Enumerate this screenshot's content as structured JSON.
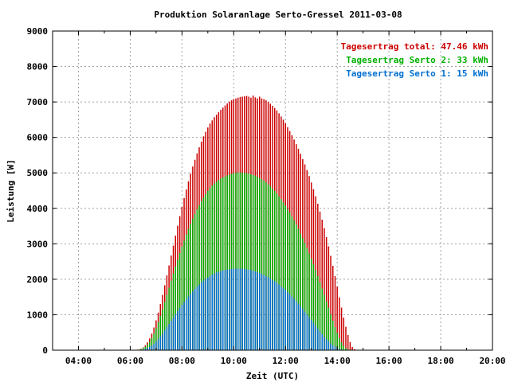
{
  "chart_data": {
    "type": "bar",
    "title": "Produktion Solaranlage Serto-Gressel 2011-03-08",
    "xlabel": "Zeit (UTC)",
    "ylabel": "Leistung [W]",
    "x_tick_labels": [
      "04:00",
      "06:00",
      "08:00",
      "10:00",
      "12:00",
      "14:00",
      "16:00",
      "18:00",
      "20:00"
    ],
    "x_ticks_hours": [
      4,
      6,
      8,
      10,
      12,
      14,
      16,
      18,
      20
    ],
    "xlim_hours": [
      3,
      20
    ],
    "y_ticks": [
      0,
      1000,
      2000,
      3000,
      4000,
      5000,
      6000,
      7000,
      8000,
      9000
    ],
    "ylim": [
      0,
      9000
    ],
    "grid": true,
    "legend_position": "top-right",
    "interval_minutes": 5,
    "start_time": "06:15",
    "series": [
      {
        "name": "Tagesertrag total: 47.46 kWh",
        "color": "#cc0000",
        "values": [
          10,
          20,
          40,
          80,
          140,
          220,
          330,
          470,
          640,
          840,
          1060,
          1300,
          1560,
          1830,
          2110,
          2390,
          2670,
          2950,
          3230,
          3510,
          3780,
          4040,
          4290,
          4530,
          4760,
          4980,
          5180,
          5370,
          5550,
          5720,
          5880,
          6030,
          6160,
          6280,
          6390,
          6480,
          6570,
          6640,
          6710,
          6780,
          6840,
          6900,
          6960,
          7010,
          7050,
          7080,
          7100,
          7120,
          7140,
          7150,
          7160,
          7170,
          7150,
          7120,
          7180,
          7130,
          7100,
          7150,
          7100,
          7080,
          7050,
          7000,
          6950,
          6890,
          6830,
          6760,
          6680,
          6590,
          6500,
          6400,
          6290,
          6180,
          6060,
          5940,
          5810,
          5680,
          5540,
          5390,
          5240,
          5080,
          4910,
          4730,
          4540,
          4340,
          4130,
          3910,
          3680,
          3440,
          3190,
          2930,
          2660,
          2380,
          2090,
          1790,
          1490,
          1200,
          920,
          660,
          430,
          230,
          90,
          30,
          10
        ]
      },
      {
        "name": "Tagesertrag Serto 2: 33 kWh",
        "color": "#00b000",
        "values": [
          5,
          15,
          30,
          60,
          100,
          160,
          240,
          340,
          470,
          620,
          790,
          970,
          1160,
          1360,
          1560,
          1760,
          1960,
          2160,
          2360,
          2550,
          2740,
          2920,
          3090,
          3260,
          3420,
          3570,
          3710,
          3840,
          3970,
          4090,
          4200,
          4300,
          4400,
          4490,
          4570,
          4640,
          4700,
          4750,
          4800,
          4840,
          4870,
          4900,
          4930,
          4950,
          4970,
          4990,
          5000,
          5010,
          5010,
          5010,
          5000,
          4990,
          4980,
          4960,
          4940,
          4920,
          4890,
          4860,
          4820,
          4780,
          4730,
          4680,
          4620,
          4560,
          4490,
          4420,
          4340,
          4260,
          4170,
          4080,
          3980,
          3880,
          3770,
          3660,
          3540,
          3420,
          3290,
          3160,
          3020,
          2880,
          2730,
          2580,
          2420,
          2260,
          2090,
          1920,
          1740,
          1560,
          1380,
          1200,
          1010,
          830,
          650,
          490,
          340,
          220,
          120,
          60,
          25,
          10,
          5,
          2,
          0
        ]
      },
      {
        "name": "Tagesertrag Serto 1: 15 kWh",
        "color": "#0070d0",
        "values": [
          0,
          5,
          10,
          20,
          40,
          60,
          90,
          130,
          180,
          240,
          310,
          390,
          470,
          560,
          650,
          740,
          830,
          920,
          1010,
          1100,
          1190,
          1280,
          1360,
          1440,
          1520,
          1590,
          1660,
          1730,
          1790,
          1850,
          1910,
          1960,
          2010,
          2050,
          2090,
          2130,
          2160,
          2190,
          2210,
          2230,
          2250,
          2260,
          2270,
          2280,
          2290,
          2300,
          2300,
          2300,
          2300,
          2300,
          2290,
          2280,
          2270,
          2260,
          2240,
          2220,
          2200,
          2180,
          2150,
          2120,
          2090,
          2060,
          2020,
          1980,
          1940,
          1900,
          1850,
          1800,
          1750,
          1700,
          1640,
          1580,
          1520,
          1450,
          1380,
          1310,
          1240,
          1170,
          1090,
          1010,
          930,
          850,
          770,
          690,
          610,
          530,
          450,
          380,
          310,
          250,
          190,
          140,
          100,
          65,
          40,
          20,
          10,
          5,
          0,
          0,
          0,
          0,
          0
        ]
      }
    ]
  }
}
